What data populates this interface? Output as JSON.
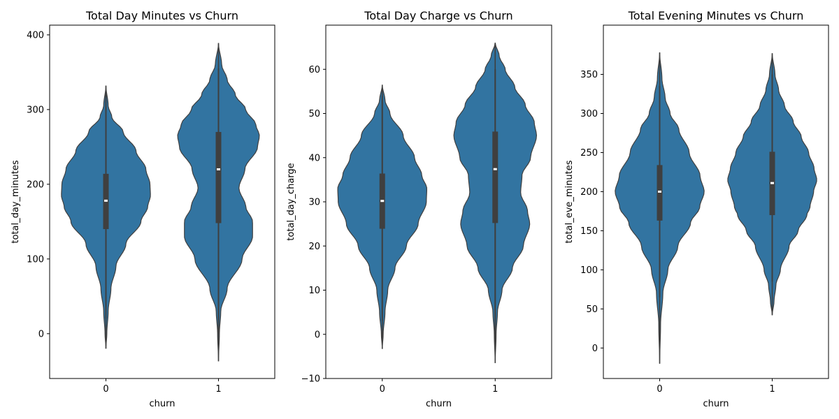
{
  "chart_data": [
    {
      "type": "violin",
      "title": "Total Day Minutes vs Churn",
      "xlabel": "churn",
      "ylabel": "total_day_minutes",
      "categories": [
        "0",
        "1"
      ],
      "ylim": [
        -60,
        413
      ],
      "yticks": [
        0,
        100,
        200,
        300,
        400
      ],
      "grid": false,
      "color": "#3274a1",
      "groups": [
        {
          "category": "0",
          "min": -20,
          "max": 332,
          "box": {
            "q1": 140,
            "median": 178,
            "q3": 214
          },
          "whisker": [
            20,
            320
          ],
          "profile": [
            [
              -20,
              0.0
            ],
            [
              0,
              0.02
            ],
            [
              30,
              0.05
            ],
            [
              60,
              0.11
            ],
            [
              90,
              0.22
            ],
            [
              120,
              0.44
            ],
            [
              150,
              0.77
            ],
            [
              170,
              0.92
            ],
            [
              185,
              0.98
            ],
            [
              200,
              0.97
            ],
            [
              220,
              0.88
            ],
            [
              245,
              0.66
            ],
            [
              270,
              0.38
            ],
            [
              290,
              0.13
            ],
            [
              305,
              0.05
            ],
            [
              332,
              0.0
            ]
          ]
        },
        {
          "category": "1",
          "min": -37,
          "max": 389,
          "box": {
            "q1": 148,
            "median": 220,
            "q3": 270
          },
          "whisker": [
            0,
            355
          ],
          "profile": [
            [
              -37,
              0.0
            ],
            [
              0,
              0.02
            ],
            [
              30,
              0.05
            ],
            [
              60,
              0.19
            ],
            [
              100,
              0.52
            ],
            [
              130,
              0.75
            ],
            [
              150,
              0.75
            ],
            [
              170,
              0.6
            ],
            [
              195,
              0.45
            ],
            [
              220,
              0.58
            ],
            [
              250,
              0.86
            ],
            [
              265,
              0.9
            ],
            [
              280,
              0.82
            ],
            [
              300,
              0.6
            ],
            [
              320,
              0.37
            ],
            [
              340,
              0.19
            ],
            [
              360,
              0.07
            ],
            [
              389,
              0.0
            ]
          ]
        }
      ]
    },
    {
      "type": "violin",
      "title": "Total Day Charge vs Churn",
      "xlabel": "churn",
      "ylabel": "total_day_charge",
      "categories": [
        "0",
        "1"
      ],
      "ylim": [
        -10,
        70
      ],
      "yticks": [
        -10,
        0,
        10,
        20,
        30,
        40,
        50,
        60
      ],
      "grid": false,
      "color": "#3274a1",
      "groups": [
        {
          "category": "0",
          "min": -3.3,
          "max": 56.5,
          "box": {
            "q1": 23.9,
            "median": 30.2,
            "q3": 36.4
          },
          "whisker": [
            3,
            54
          ],
          "profile": [
            [
              -3.3,
              0.0
            ],
            [
              0,
              0.02
            ],
            [
              5,
              0.06
            ],
            [
              10,
              0.12
            ],
            [
              15,
              0.28
            ],
            [
              20,
              0.53
            ],
            [
              25,
              0.79
            ],
            [
              30,
              0.97
            ],
            [
              33,
              0.98
            ],
            [
              36,
              0.87
            ],
            [
              40,
              0.71
            ],
            [
              45,
              0.46
            ],
            [
              50,
              0.17
            ],
            [
              53,
              0.06
            ],
            [
              56.5,
              0.0
            ]
          ]
        },
        {
          "category": "1",
          "min": -6.5,
          "max": 66,
          "box": {
            "q1": 25.2,
            "median": 37.4,
            "q3": 45.9
          },
          "whisker": [
            0,
            60
          ],
          "profile": [
            [
              -6.5,
              0.0
            ],
            [
              0,
              0.02
            ],
            [
              5,
              0.05
            ],
            [
              10,
              0.15
            ],
            [
              15,
              0.38
            ],
            [
              20,
              0.62
            ],
            [
              25,
              0.76
            ],
            [
              28,
              0.71
            ],
            [
              32,
              0.56
            ],
            [
              36,
              0.59
            ],
            [
              40,
              0.78
            ],
            [
              45,
              0.91
            ],
            [
              48,
              0.86
            ],
            [
              52,
              0.66
            ],
            [
              56,
              0.43
            ],
            [
              60,
              0.22
            ],
            [
              63,
              0.09
            ],
            [
              66,
              0.0
            ]
          ]
        }
      ]
    },
    {
      "type": "violin",
      "title": "Total Evening Minutes vs Churn",
      "xlabel": "churn",
      "ylabel": "total_eve_minutes",
      "categories": [
        "0",
        "1"
      ],
      "ylim": [
        -39,
        413
      ],
      "yticks": [
        0,
        50,
        100,
        150,
        200,
        250,
        300,
        350
      ],
      "grid": false,
      "color": "#3274a1",
      "groups": [
        {
          "category": "0",
          "min": -20,
          "max": 378,
          "box": {
            "q1": 163,
            "median": 200,
            "q3": 234
          },
          "whisker": [
            65,
            335
          ],
          "profile": [
            [
              -20,
              0.0
            ],
            [
              30,
              0.02
            ],
            [
              70,
              0.07
            ],
            [
              100,
              0.18
            ],
            [
              130,
              0.4
            ],
            [
              160,
              0.68
            ],
            [
              180,
              0.88
            ],
            [
              200,
              0.98
            ],
            [
              220,
              0.89
            ],
            [
              250,
              0.65
            ],
            [
              280,
              0.42
            ],
            [
              300,
              0.23
            ],
            [
              320,
              0.12
            ],
            [
              345,
              0.05
            ],
            [
              378,
              0.0
            ]
          ]
        },
        {
          "category": "1",
          "min": 42,
          "max": 377,
          "box": {
            "q1": 170,
            "median": 211,
            "q3": 251
          },
          "whisker": [
            85,
            350
          ],
          "profile": [
            [
              42,
              0.0
            ],
            [
              60,
              0.04
            ],
            [
              80,
              0.08
            ],
            [
              100,
              0.18
            ],
            [
              130,
              0.37
            ],
            [
              150,
              0.57
            ],
            [
              170,
              0.76
            ],
            [
              180,
              0.83
            ],
            [
              200,
              0.91
            ],
            [
              215,
              0.98
            ],
            [
              230,
              0.92
            ],
            [
              250,
              0.8
            ],
            [
              270,
              0.64
            ],
            [
              290,
              0.46
            ],
            [
              310,
              0.27
            ],
            [
              330,
              0.14
            ],
            [
              350,
              0.06
            ],
            [
              377,
              0.0
            ]
          ]
        }
      ]
    }
  ]
}
